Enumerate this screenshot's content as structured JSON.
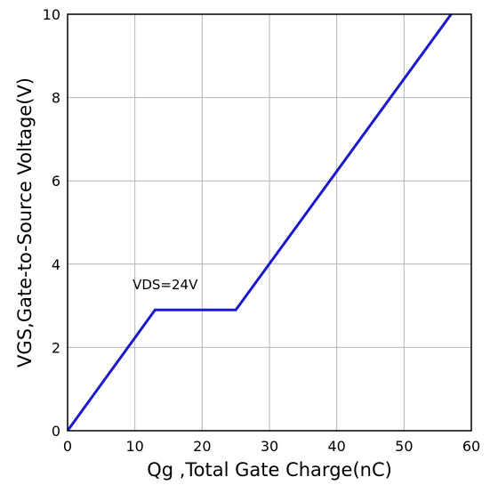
{
  "chart_data": {
    "type": "line",
    "title": "",
    "xlabel": "Qg ,Total Gate Charge(nC)",
    "ylabel": "VGS,Gate-to-Source Voltage(V)",
    "xlim": [
      0,
      60
    ],
    "ylim": [
      0,
      10
    ],
    "x_ticks": [
      0,
      10,
      20,
      30,
      40,
      50,
      60
    ],
    "y_ticks": [
      0,
      2,
      4,
      6,
      8,
      10
    ],
    "x_tick_labels": [
      "0",
      "10",
      "20",
      "30",
      "40",
      "50",
      "60"
    ],
    "y_tick_labels": [
      "0",
      "2",
      "4",
      "6",
      "8",
      "10"
    ],
    "grid": true,
    "series": [
      {
        "color": "#1a1acc",
        "x": [
          0,
          13,
          25,
          57
        ],
        "y": [
          0,
          2.9,
          2.9,
          10
        ]
      }
    ],
    "annotations": [
      {
        "text": "VDS=24V",
        "x": 14.5,
        "y": 3.4
      }
    ]
  }
}
